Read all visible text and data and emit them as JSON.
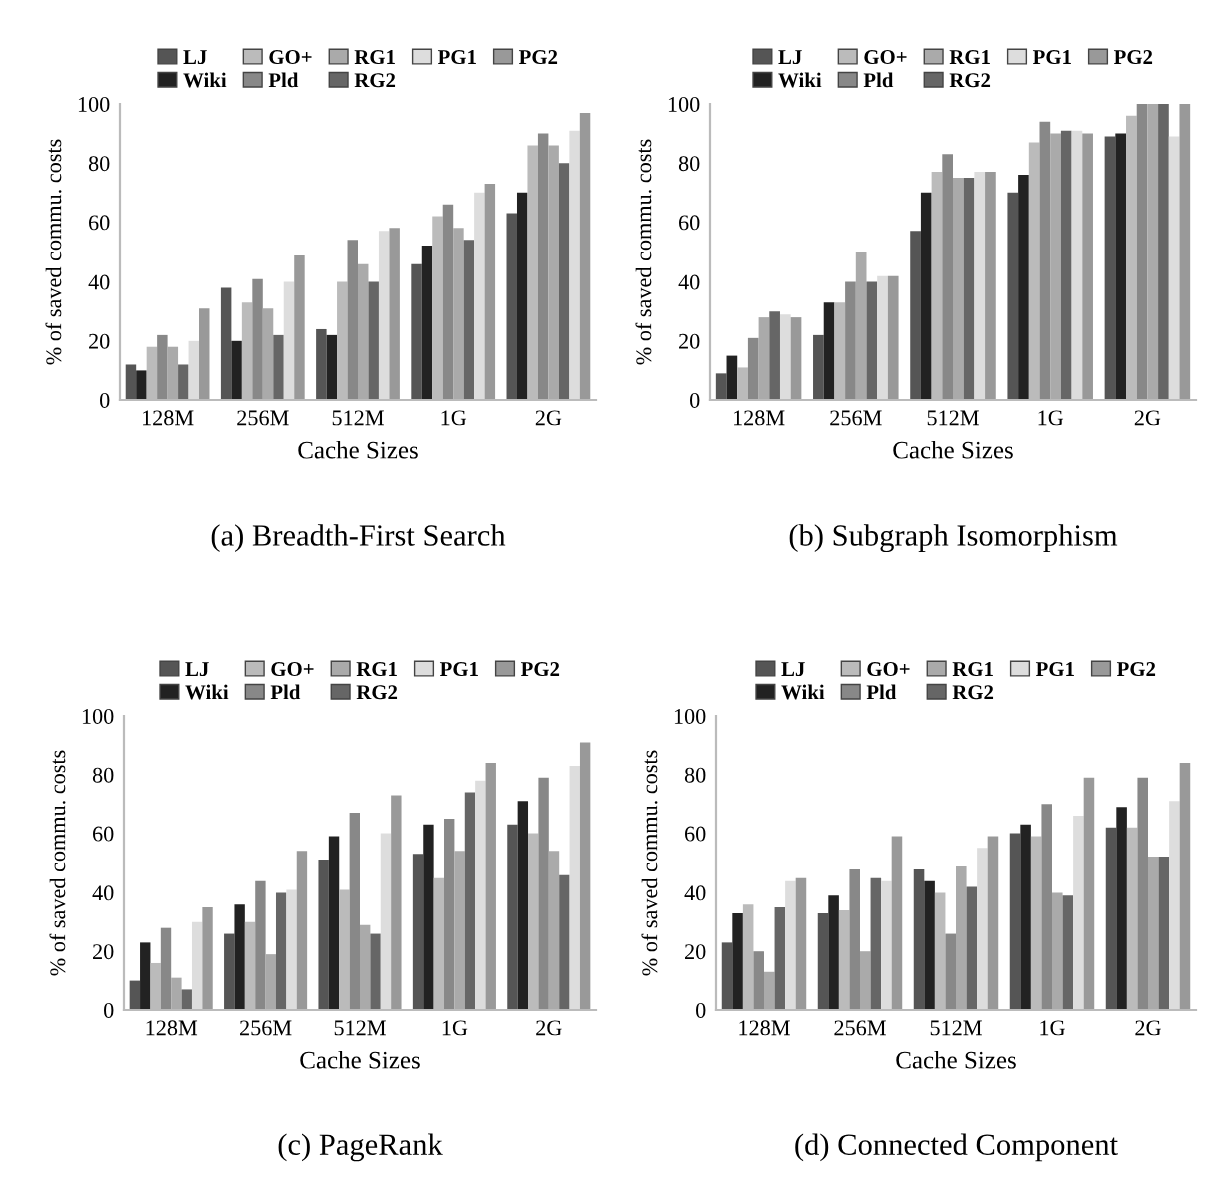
{
  "chart_data": [
    {
      "type": "bar",
      "title": "(a) Breadth-First Search",
      "xlabel": "Cache Sizes",
      "ylabel": "% of saved commu. costs",
      "categories": [
        "128M",
        "256M",
        "512M",
        "1G",
        "2G"
      ],
      "ylim": [
        0,
        100
      ],
      "yticks": [
        0,
        20,
        40,
        60,
        80,
        100
      ],
      "legend": "top",
      "grid": false,
      "series": [
        {
          "name": "LJ",
          "color": "#555555",
          "values": [
            12,
            38,
            24,
            46,
            63
          ]
        },
        {
          "name": "Wiki",
          "color": "#222222",
          "values": [
            10,
            20,
            22,
            52,
            70
          ]
        },
        {
          "name": "GO+",
          "color": "#bbbbbb",
          "values": [
            18,
            33,
            40,
            62,
            86
          ]
        },
        {
          "name": "Pld",
          "color": "#888888",
          "values": [
            22,
            41,
            54,
            66,
            90
          ]
        },
        {
          "name": "RG1",
          "color": "#aaaaaa",
          "values": [
            18,
            31,
            46,
            58,
            86
          ]
        },
        {
          "name": "RG2",
          "color": "#666666",
          "values": [
            12,
            22,
            40,
            54,
            80
          ]
        },
        {
          "name": "PG1",
          "color": "#dddddd",
          "values": [
            20,
            40,
            57,
            70,
            91
          ]
        },
        {
          "name": "PG2",
          "color": "#999999",
          "values": [
            31,
            49,
            58,
            73,
            97
          ]
        }
      ]
    },
    {
      "type": "bar",
      "title": "(b) Subgraph Isomorphism",
      "xlabel": "Cache Sizes",
      "ylabel": "% of saved commu. costs",
      "categories": [
        "128M",
        "256M",
        "512M",
        "1G",
        "2G"
      ],
      "ylim": [
        0,
        100
      ],
      "yticks": [
        0,
        20,
        40,
        60,
        80,
        100
      ],
      "legend": "top",
      "grid": false,
      "series": [
        {
          "name": "LJ",
          "color": "#555555",
          "values": [
            9,
            22,
            57,
            70,
            89
          ]
        },
        {
          "name": "Wiki",
          "color": "#222222",
          "values": [
            15,
            33,
            70,
            76,
            90
          ]
        },
        {
          "name": "GO+",
          "color": "#bbbbbb",
          "values": [
            11,
            33,
            77,
            87,
            96
          ]
        },
        {
          "name": "Pld",
          "color": "#888888",
          "values": [
            21,
            40,
            83,
            94,
            100
          ]
        },
        {
          "name": "RG1",
          "color": "#aaaaaa",
          "values": [
            28,
            50,
            75,
            90,
            100
          ]
        },
        {
          "name": "RG2",
          "color": "#666666",
          "values": [
            30,
            40,
            75,
            91,
            100
          ]
        },
        {
          "name": "PG1",
          "color": "#dddddd",
          "values": [
            29,
            42,
            77,
            91,
            89
          ]
        },
        {
          "name": "PG2",
          "color": "#999999",
          "values": [
            28,
            42,
            77,
            90,
            100
          ]
        }
      ]
    },
    {
      "type": "bar",
      "title": "(c) PageRank",
      "xlabel": "Cache Sizes",
      "ylabel": "% of saved commu. costs",
      "categories": [
        "128M",
        "256M",
        "512M",
        "1G",
        "2G"
      ],
      "ylim": [
        0,
        100
      ],
      "yticks": [
        0,
        20,
        40,
        60,
        80,
        100
      ],
      "legend": "top",
      "grid": false,
      "series": [
        {
          "name": "LJ",
          "color": "#555555",
          "values": [
            10,
            26,
            51,
            53,
            63
          ]
        },
        {
          "name": "Wiki",
          "color": "#222222",
          "values": [
            23,
            36,
            59,
            63,
            71
          ]
        },
        {
          "name": "GO+",
          "color": "#bbbbbb",
          "values": [
            16,
            30,
            41,
            45,
            60
          ]
        },
        {
          "name": "Pld",
          "color": "#888888",
          "values": [
            28,
            44,
            67,
            65,
            79
          ]
        },
        {
          "name": "RG1",
          "color": "#aaaaaa",
          "values": [
            11,
            19,
            29,
            54,
            54
          ]
        },
        {
          "name": "RG2",
          "color": "#666666",
          "values": [
            7,
            40,
            26,
            74,
            46
          ]
        },
        {
          "name": "PG1",
          "color": "#dddddd",
          "values": [
            30,
            41,
            60,
            78,
            83
          ]
        },
        {
          "name": "PG2",
          "color": "#999999",
          "values": [
            35,
            54,
            73,
            84,
            91
          ]
        }
      ]
    },
    {
      "type": "bar",
      "title": "(d) Connected Component",
      "xlabel": "Cache Sizes",
      "ylabel": "% of saved commu. costs",
      "categories": [
        "128M",
        "256M",
        "512M",
        "1G",
        "2G"
      ],
      "ylim": [
        0,
        100
      ],
      "yticks": [
        0,
        20,
        40,
        60,
        80,
        100
      ],
      "legend": "top",
      "grid": false,
      "series": [
        {
          "name": "LJ",
          "color": "#555555",
          "values": [
            23,
            33,
            48,
            60,
            62
          ]
        },
        {
          "name": "Wiki",
          "color": "#222222",
          "values": [
            33,
            39,
            44,
            63,
            69
          ]
        },
        {
          "name": "GO+",
          "color": "#bbbbbb",
          "values": [
            36,
            34,
            40,
            59,
            62
          ]
        },
        {
          "name": "Pld",
          "color": "#888888",
          "values": [
            20,
            48,
            26,
            70,
            79
          ]
        },
        {
          "name": "RG1",
          "color": "#aaaaaa",
          "values": [
            13,
            20,
            49,
            40,
            52
          ]
        },
        {
          "name": "RG2",
          "color": "#666666",
          "values": [
            35,
            45,
            42,
            39,
            52
          ]
        },
        {
          "name": "PG1",
          "color": "#dddddd",
          "values": [
            44,
            44,
            55,
            66,
            71
          ]
        },
        {
          "name": "PG2",
          "color": "#999999",
          "values": [
            45,
            59,
            59,
            79,
            84
          ]
        }
      ]
    }
  ]
}
